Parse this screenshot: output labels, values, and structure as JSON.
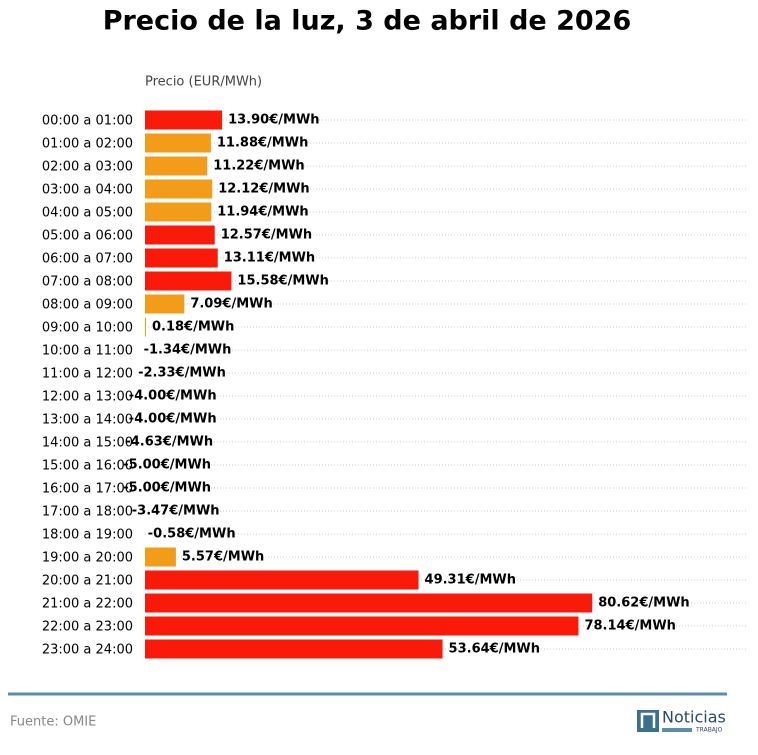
{
  "chart_data": {
    "type": "barh",
    "title": "Precio de la luz, 3 de abril de 2026",
    "xlabel": "Precio (EUR/MWh)",
    "source": "Fuente: OMIE",
    "logo": {
      "text": "Noticias",
      "subtext": "TRABAJO"
    },
    "xlim": [
      0,
      108.7
    ],
    "categories": [
      "00:00 a 01:00",
      "01:00 a 02:00",
      "02:00 a 03:00",
      "03:00 a 04:00",
      "04:00 a 05:00",
      "05:00 a 06:00",
      "06:00 a 07:00",
      "07:00 a 08:00",
      "08:00 a 09:00",
      "09:00 a 10:00",
      "10:00 a 11:00",
      "11:00 a 12:00",
      "12:00 a 13:00",
      "13:00 a 14:00",
      "14:00 a 15:00",
      "15:00 a 16:00",
      "16:00 a 17:00",
      "17:00 a 18:00",
      "18:00 a 19:00",
      "19:00 a 20:00",
      "20:00 a 21:00",
      "21:00 a 22:00",
      "22:00 a 23:00",
      "23:00 a 24:00"
    ],
    "values": [
      13.9,
      11.88,
      11.22,
      12.12,
      11.94,
      12.57,
      13.11,
      15.58,
      7.09,
      0.18,
      -1.34,
      -2.33,
      -4.0,
      -4.0,
      -4.63,
      -5.0,
      -5.0,
      -3.47,
      -0.58,
      5.57,
      49.31,
      80.62,
      78.14,
      53.64
    ],
    "value_labels": [
      "13.90€/MWh",
      "11.88€/MWh",
      "11.22€/MWh",
      "12.12€/MWh",
      "11.94€/MWh",
      "12.57€/MWh",
      "13.11€/MWh",
      "15.58€/MWh",
      "7.09€/MWh",
      "0.18€/MWh",
      "-1.34€/MWh",
      "-2.33€/MWh",
      "-4.00€/MWh",
      "-4.00€/MWh",
      "-4.63€/MWh",
      "-5.00€/MWh",
      "-5.00€/MWh",
      "-3.47€/MWh",
      "-0.58€/MWh",
      "5.57€/MWh",
      "49.31€/MWh",
      "80.62€/MWh",
      "78.14€/MWh",
      "53.64€/MWh"
    ],
    "colors": [
      "#f91a0a",
      "#f39c1a",
      "#f39c1a",
      "#f39c1a",
      "#f39c1a",
      "#f91a0a",
      "#f91a0a",
      "#f91a0a",
      "#f39c1a",
      "#f39c1a",
      "#f39c1a",
      "#f39c1a",
      "#f39c1a",
      "#f39c1a",
      "#f39c1a",
      "#f39c1a",
      "#f39c1a",
      "#f39c1a",
      "#f39c1a",
      "#f39c1a",
      "#f91a0a",
      "#f91a0a",
      "#f91a0a",
      "#f91a0a"
    ]
  }
}
